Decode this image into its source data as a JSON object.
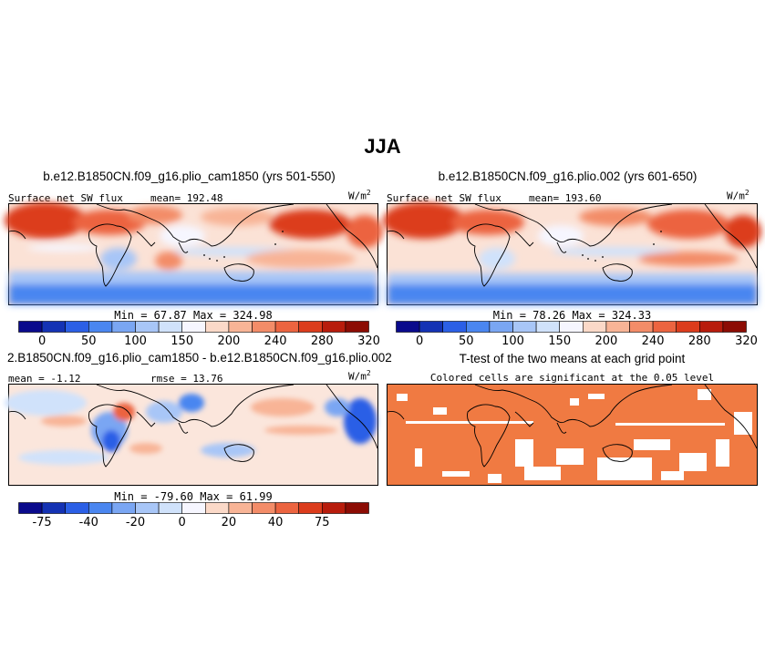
{
  "title": "JJA",
  "chart_data": [
    {
      "type": "heatmap",
      "title": "b.e12.B1850CN.f09_g16.plio_cam1850 (yrs 501-550)",
      "variable": "Surface net SW flux",
      "mean_label": "mean= 192.48",
      "units": "W/m",
      "units_exp": "2",
      "min_max_label": "Min =  67.87 Max = 324.98",
      "min": 67.87,
      "max": 324.98,
      "mean": 192.48,
      "colorbar_ticks": [
        "0",
        "50",
        "100",
        "150",
        "200",
        "240",
        "280",
        "320"
      ],
      "colorbar_colors": [
        "#0a0a8c",
        "#1432b4",
        "#2b5fe6",
        "#4a86f0",
        "#7aa6f3",
        "#a8c6f7",
        "#d0e2fb",
        "#f6f6ff",
        "#fbd9c8",
        "#f8b496",
        "#f38c68",
        "#ec6440",
        "#dc3c1c",
        "#b81c0c",
        "#8c0c04"
      ]
    },
    {
      "type": "heatmap",
      "title": "b.e12.B1850CN.f09_g16.plio.002 (yrs 601-650)",
      "variable": "Surface net SW flux",
      "mean_label": "mean= 193.60",
      "units": "W/m",
      "units_exp": "2",
      "min_max_label": "Min =  78.26 Max = 324.33",
      "min": 78.26,
      "max": 324.33,
      "mean": 193.6,
      "colorbar_ticks": [
        "0",
        "50",
        "100",
        "150",
        "200",
        "240",
        "280",
        "320"
      ],
      "colorbar_colors": [
        "#0a0a8c",
        "#1432b4",
        "#2b5fe6",
        "#4a86f0",
        "#7aa6f3",
        "#a8c6f7",
        "#d0e2fb",
        "#f6f6ff",
        "#fbd9c8",
        "#f8b496",
        "#f38c68",
        "#ec6440",
        "#dc3c1c",
        "#b81c0c",
        "#8c0c04"
      ]
    },
    {
      "type": "heatmap",
      "title": "2.B1850CN.f09_g16.plio_cam1850 - b.e12.B1850CN.f09_g16.plio.002",
      "mean_label": "mean = -1.12",
      "rmse_label": "rmse =  13.76",
      "units": "W/m",
      "units_exp": "2",
      "min_max_label": "Min = -79.60 Max =  61.99",
      "min": -79.6,
      "max": 61.99,
      "mean": -1.12,
      "rmse": 13.76,
      "colorbar_ticks": [
        "-75",
        "-40",
        "-20",
        "0",
        "20",
        "40",
        "75"
      ],
      "colorbar_colors": [
        "#0a0a8c",
        "#1432b4",
        "#2b5fe6",
        "#4a86f0",
        "#7aa6f3",
        "#a8c6f7",
        "#d0e2fb",
        "#f6f6ff",
        "#fbd9c8",
        "#f8b496",
        "#f38c68",
        "#ec6440",
        "#dc3c1c",
        "#b81c0c",
        "#8c0c04"
      ]
    },
    {
      "type": "heatmap",
      "title": "T-test of the two means at each grid point",
      "subtitle": "Colored cells are significant at the 0.05 level",
      "significant_color": "#f07a42"
    }
  ]
}
